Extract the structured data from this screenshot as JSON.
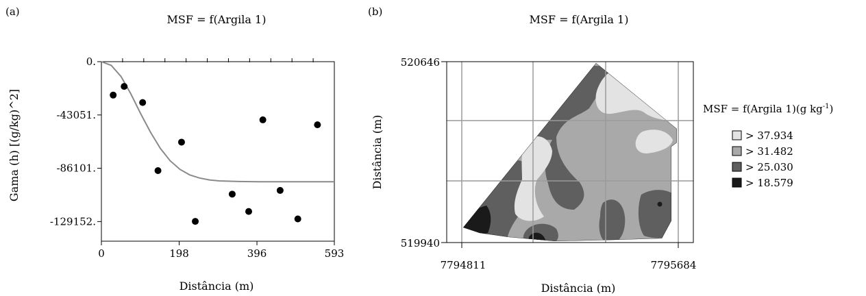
{
  "panels": {
    "a": {
      "label": "(a)",
      "chart_data": {
        "type": "scatter",
        "title": "MSF = f(Argila 1)",
        "xlabel": "Distância (m)",
        "ylabel": "Gama (h) [(g/kg)^2]",
        "xlim": [
          0,
          593
        ],
        "ylim": [
          -145000,
          0
        ],
        "x_ticks": [
          0,
          198,
          396,
          593
        ],
        "x_tick_labels": [
          "0",
          "198",
          "396",
          "593"
        ],
        "y_ticks": [
          0,
          -43051,
          -86101,
          -129152
        ],
        "y_tick_labels": [
          "0.",
          "-43051.",
          "-86101.",
          "-129152."
        ],
        "points": [
          {
            "x": 30,
            "y": -27000
          },
          {
            "x": 58,
            "y": -20000
          },
          {
            "x": 105,
            "y": -33000
          },
          {
            "x": 144,
            "y": -88000
          },
          {
            "x": 204,
            "y": -65000
          },
          {
            "x": 239,
            "y": -129000
          },
          {
            "x": 333,
            "y": -107000
          },
          {
            "x": 375,
            "y": -121000
          },
          {
            "x": 411,
            "y": -47000
          },
          {
            "x": 455,
            "y": -104000
          },
          {
            "x": 500,
            "y": -127000
          },
          {
            "x": 550,
            "y": -51000
          }
        ],
        "model_curve": {
          "x": [
            0,
            25,
            50,
            75,
            100,
            125,
            150,
            175,
            200,
            225,
            250,
            275,
            300,
            350,
            400,
            450,
            500,
            550,
            593
          ],
          "y": [
            0,
            -3000,
            -12000,
            -26000,
            -42000,
            -57000,
            -70000,
            -80000,
            -87000,
            -91500,
            -94000,
            -95500,
            -96300,
            -96800,
            -97000,
            -97000,
            -97000,
            -97000,
            -97000
          ]
        },
        "grid": false
      }
    },
    "b": {
      "label": "(b)",
      "chart_data": {
        "type": "heatmap",
        "title": "MSF = f(Argila 1)",
        "xlabel": "Distância (m)",
        "ylabel": "Distância (m)",
        "x_tick_labels": [
          "7794811",
          "7795684"
        ],
        "y_tick_labels": [
          "520646",
          "519940"
        ],
        "grid": true,
        "legend_position": "right",
        "legend": {
          "title": "MSF = f(Argila 1)(g kg",
          "title_sup": "-1",
          "title_end": ")",
          "classes": [
            {
              "label": "> 37.934",
              "color": "#e3e3e3"
            },
            {
              "label": "> 31.482",
              "color": "#a9a9a9"
            },
            {
              "label": "> 25.030",
              "color": "#5f5f5f"
            },
            {
              "label": "> 18.579",
              "color": "#1a1a1a"
            }
          ]
        }
      }
    }
  }
}
